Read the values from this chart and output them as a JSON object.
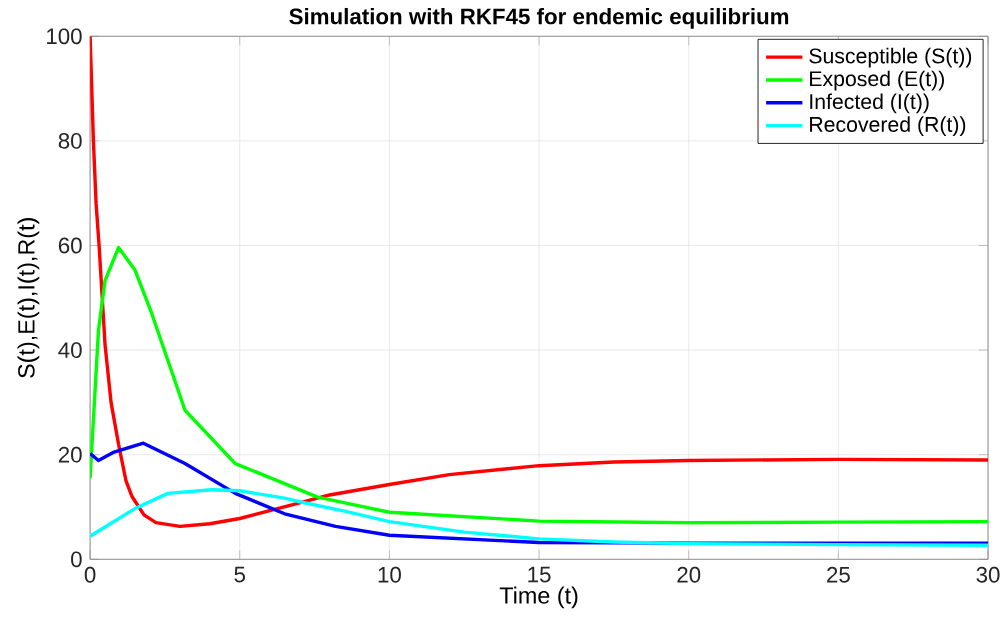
{
  "chart_data": {
    "type": "line",
    "title": "Simulation with RKF45 for endemic equilibrium",
    "xlabel": "Time (t)",
    "ylabel": "S(t),E(t),I(t),R(t)",
    "xlim": [
      0,
      30
    ],
    "ylim": [
      0,
      100
    ],
    "xticks": [
      0,
      5,
      10,
      15,
      20,
      25,
      30
    ],
    "yticks": [
      0,
      20,
      40,
      60,
      80,
      100
    ],
    "grid": true,
    "legend": "top right",
    "series": [
      {
        "name": "Susceptible (S(t))",
        "color": "#ff0000",
        "x": [
          0,
          0.11,
          0.2,
          0.3,
          0.5,
          0.7,
          0.95,
          1.2,
          1.4,
          1.8,
          2.2,
          3,
          4,
          5,
          6,
          7,
          8,
          10,
          12,
          15,
          17.5,
          20,
          25,
          30
        ],
        "values": [
          100,
          80,
          68,
          60,
          41,
          30,
          22,
          15,
          12,
          8.5,
          7,
          6.3,
          6.8,
          7.8,
          9.3,
          10.8,
          12.3,
          14.3,
          16.2,
          17.9,
          18.6,
          18.9,
          19.1,
          19.0
        ]
      },
      {
        "name": "Exposed (E(t))",
        "color": "#00ff00",
        "x": [
          0,
          0.28,
          0.5,
          0.95,
          1.5,
          2.06,
          3.17,
          4.85,
          7.6,
          10,
          15,
          20,
          25,
          30
        ],
        "values": [
          15.5,
          43.8,
          53.3,
          59.6,
          55.3,
          47,
          28.5,
          18.3,
          11.9,
          9.0,
          7.3,
          7.0,
          7.1,
          7.2
        ]
      },
      {
        "name": "Infected (I(t))",
        "color": "#0000ff",
        "x": [
          0,
          0.28,
          0.8,
          1.78,
          3.17,
          4.85,
          6.5,
          8.2,
          10,
          15,
          20,
          25,
          30
        ],
        "values": [
          20.2,
          18.9,
          20.5,
          22.2,
          18.3,
          12.6,
          8.7,
          6.3,
          4.6,
          3.2,
          3.1,
          3.1,
          3.1
        ]
      },
      {
        "name": "Recovered (R(t))",
        "color": "#00ffff",
        "x": [
          0,
          1.5,
          2.6,
          4.06,
          5,
          6.5,
          7,
          8.5,
          10,
          12.5,
          15,
          17.5,
          20,
          25,
          30
        ],
        "values": [
          4.4,
          9.7,
          12.6,
          13.3,
          13.1,
          11.7,
          11,
          9.2,
          7.2,
          5.2,
          3.9,
          3.3,
          3.0,
          2.8,
          2.7
        ]
      }
    ]
  }
}
